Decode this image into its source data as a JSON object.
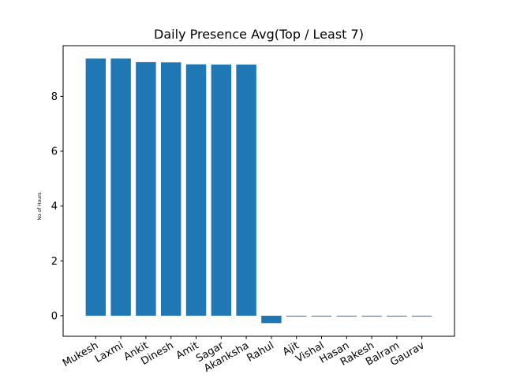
{
  "chart_data": {
    "type": "bar",
    "title": "Daily Presence Avg(Top / Least 7)",
    "xlabel": "",
    "ylabel": "No of Hours",
    "categories": [
      "Mukesh",
      "Laxmi",
      "Ankit",
      "Dinesh",
      "Amit",
      "Sagar",
      "Akanksha",
      "Rahul",
      "Ajit",
      "Vishal",
      "Hasan",
      "Rakesh",
      "Balram",
      "Gaurav"
    ],
    "values": [
      9.38,
      9.38,
      9.25,
      9.24,
      9.17,
      9.16,
      9.16,
      -0.27,
      -0.02,
      -0.02,
      -0.02,
      -0.02,
      -0.02,
      0.0
    ],
    "ylim": [
      -0.75,
      9.85
    ],
    "yticks": [
      0,
      2,
      4,
      6,
      8
    ],
    "bar_color": "#1f77b4",
    "grid": false,
    "legend": "none"
  }
}
